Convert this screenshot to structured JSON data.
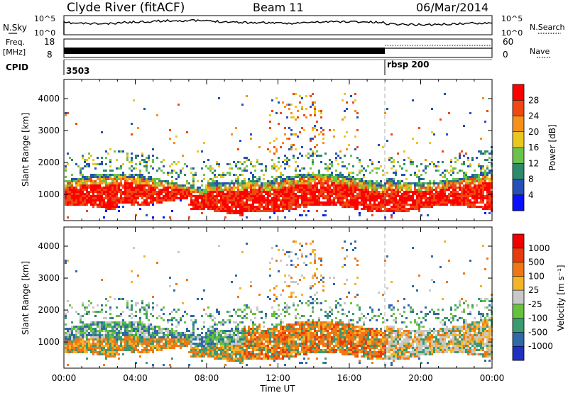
{
  "header": {
    "title": "Clyde River (fitACF)",
    "beam": "Beam 11",
    "date": "06/Mar/2014"
  },
  "top_panels": {
    "nsky": {
      "left_label": "N.Sky",
      "right_label": "N.Search",
      "left_ticks": [
        "10^5",
        "10^0"
      ],
      "right_ticks": [
        "10^5",
        "10^0"
      ]
    },
    "freq": {
      "left_label_1": "Freq.",
      "left_label_2": "[MHz]",
      "right_label": "Nave",
      "left_ticks": [
        "18",
        "8"
      ],
      "right_ticks": [
        "60",
        "0"
      ]
    },
    "cpid": {
      "label": "CPID",
      "segments": [
        {
          "label": "3503",
          "start_hour": 0
        },
        {
          "label": "rbsp 200",
          "start_hour": 18
        }
      ]
    }
  },
  "chart_data": [
    {
      "type": "heatmap",
      "name": "Power",
      "ylabel": "Slant Range [km]",
      "xlabel": "",
      "ylim": [
        180,
        4600
      ],
      "y_ticks": [
        1000,
        2000,
        3000,
        4000
      ],
      "colorbar": {
        "label": "Power [dB]",
        "range": [
          0,
          32
        ],
        "ticks": [
          "4",
          "8",
          "12",
          "16",
          "20",
          "24",
          "28"
        ],
        "colors": [
          "#0a10ff",
          "#264fb8",
          "#2a8a6a",
          "#6cc24a",
          "#e8c81e",
          "#f5901a",
          "#f04812",
          "#ff0000"
        ]
      }
    },
    {
      "type": "heatmap",
      "name": "Velocity",
      "ylabel": "Slant Range [km]",
      "xlabel": "Time UT",
      "ylim": [
        180,
        4600
      ],
      "y_ticks": [
        1000,
        2000,
        3000,
        4000
      ],
      "x_ticks": [
        "00:00",
        "04:00",
        "08:00",
        "12:00",
        "16:00",
        "20:00",
        "00:00"
      ],
      "colorbar": {
        "label": "Velocity [m s⁻¹]",
        "ticks": [
          "1000",
          "500",
          "100",
          "25",
          "-25",
          "-100",
          "-500",
          "-1000"
        ],
        "colors": [
          "#2030c0",
          "#3068a8",
          "#3a9a70",
          "#66c23a",
          "#c8c8c8",
          "#f5b428",
          "#f07814",
          "#e83a0c",
          "#f00000"
        ]
      }
    }
  ]
}
